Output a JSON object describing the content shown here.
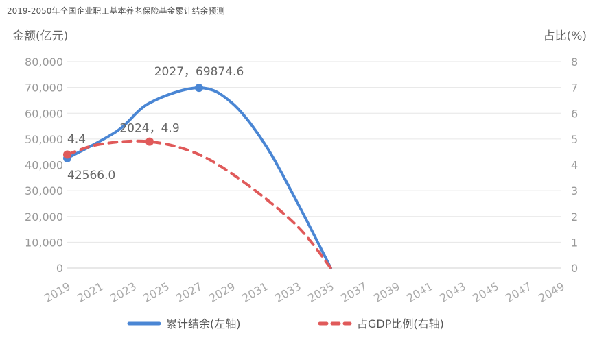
{
  "chart_data": {
    "type": "line",
    "title": "2019-2050年全国企业职工基本养老保险基金累计结余预测",
    "y_left_label": "金额(亿元)",
    "y_right_label": "占比(%)",
    "y_left_ticks": [
      "0",
      "10,000",
      "20,000",
      "30,000",
      "40,000",
      "50,000",
      "60,000",
      "70,000",
      "80,000"
    ],
    "y_right_ticks": [
      "0",
      "1",
      "2",
      "3",
      "4",
      "5",
      "6",
      "7",
      "8"
    ],
    "x_ticks": [
      "2019",
      "2021",
      "2023",
      "2025",
      "2027",
      "2029",
      "2031",
      "2033",
      "2035",
      "2037",
      "2039",
      "2041",
      "2043",
      "2045",
      "2047",
      "2049"
    ],
    "ylim_left": [
      0,
      80000
    ],
    "ylim_right": [
      0,
      8
    ],
    "xlim": [
      2019,
      2049
    ],
    "grid": true,
    "legend_position": "bottom",
    "series": [
      {
        "name": "累计结余(左轴)",
        "axis": "left",
        "color": "#4a86d4",
        "style": "solid",
        "x": [
          2019,
          2022,
          2024,
          2027,
          2029,
          2031,
          2033,
          2035
        ],
        "y": [
          42566.0,
          53000,
          64000,
          69874.6,
          64000,
          48000,
          25000,
          0
        ],
        "marked_x": [
          2019,
          2027
        ]
      },
      {
        "name": "占GDP比例(右轴)",
        "axis": "right",
        "color": "#e05a5a",
        "style": "dashed",
        "x": [
          2019,
          2021,
          2024,
          2027,
          2030,
          2033,
          2035
        ],
        "y": [
          4.4,
          4.8,
          4.9,
          4.4,
          3.2,
          1.6,
          0
        ],
        "marked_x": [
          2019,
          2024
        ]
      }
    ],
    "annotations": [
      {
        "text": "2027，69874.6",
        "series": 0,
        "x": 2027
      },
      {
        "text": "2024，4.9",
        "series": 1,
        "x": 2024
      },
      {
        "text": "4.4",
        "series": 1,
        "x": 2019
      },
      {
        "text": "42566.0",
        "series": 0,
        "x": 2019
      }
    ]
  }
}
